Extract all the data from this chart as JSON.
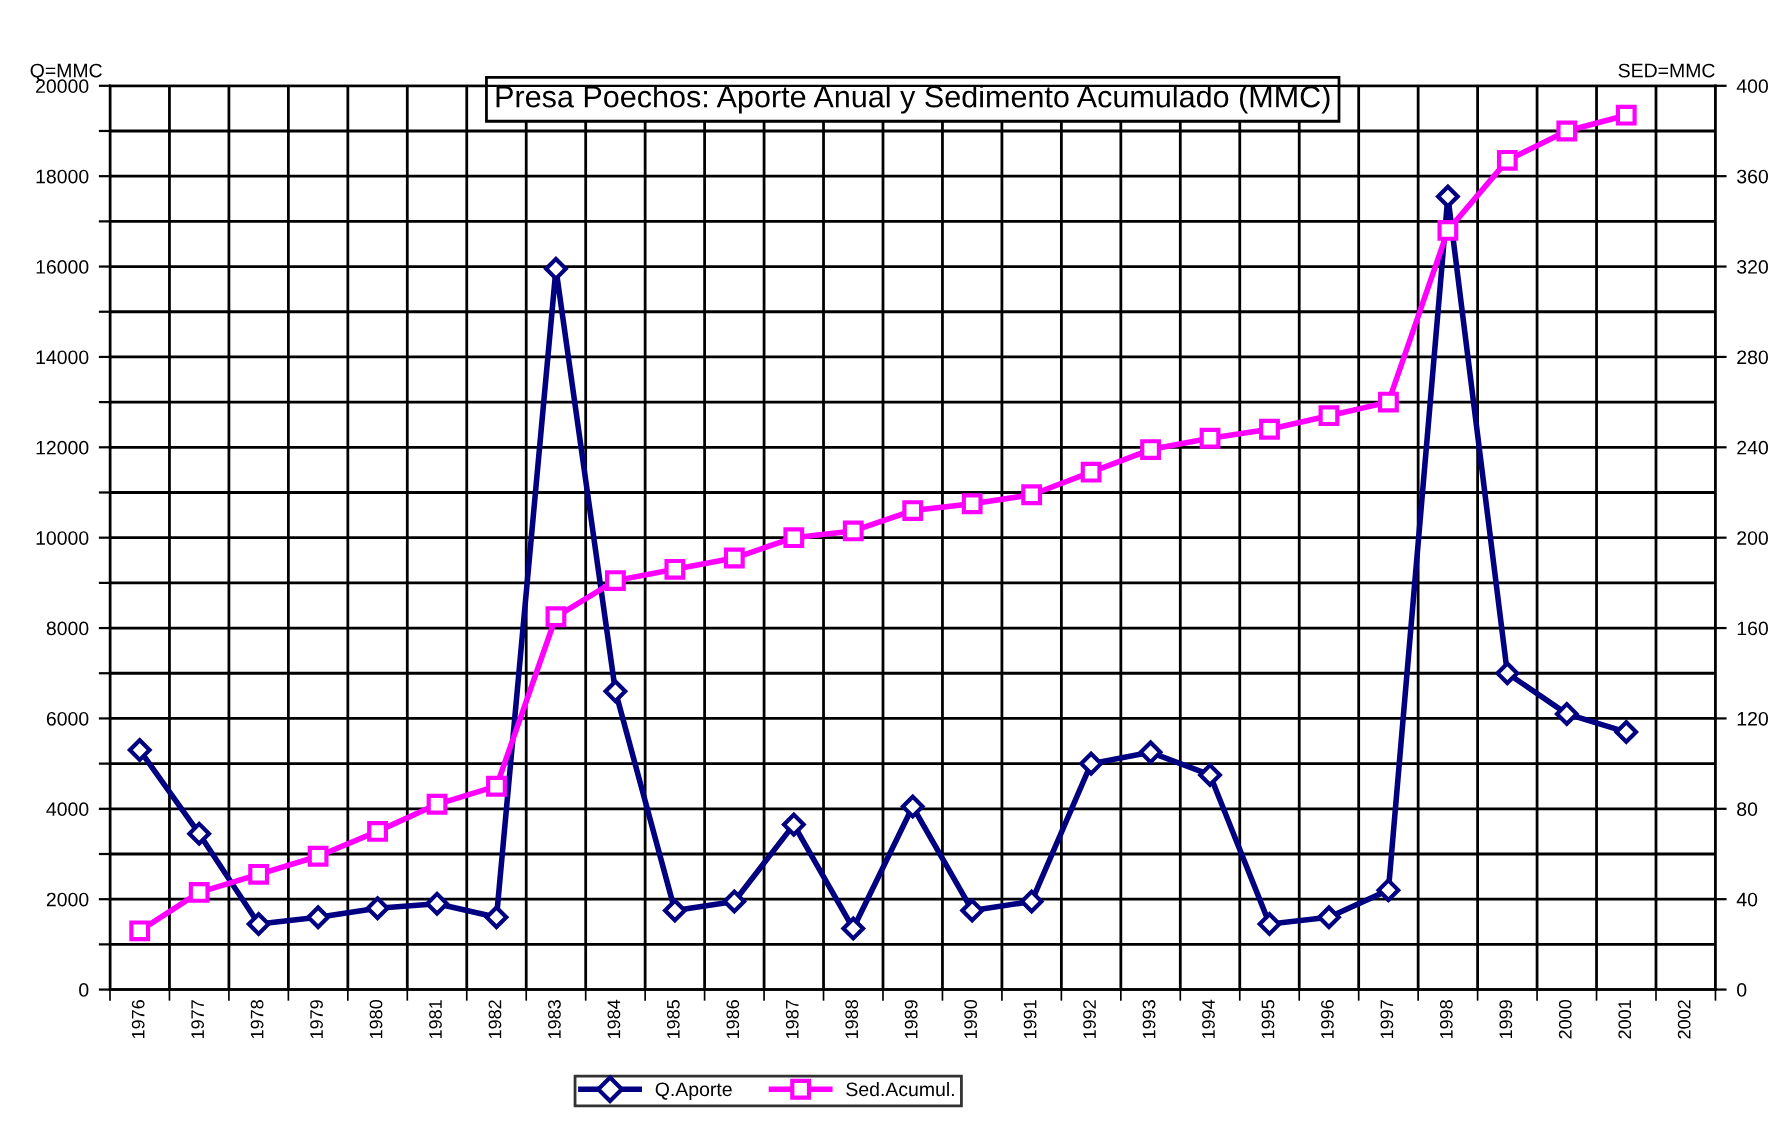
{
  "chart_data": {
    "type": "line",
    "title": "Presa Poechos: Aporte Anual y Sedimento Acumulado (MMC)",
    "ylabel": "Q=MMC",
    "y2label": "SED=MMC",
    "categories": [
      "1976",
      "1977",
      "1978",
      "1979",
      "1980",
      "1981",
      "1982",
      "1983",
      "1984",
      "1985",
      "1986",
      "1987",
      "1988",
      "1989",
      "1990",
      "1991",
      "1992",
      "1993",
      "1994",
      "1995",
      "1996",
      "1997",
      "1998",
      "1999",
      "2000",
      "2001",
      "2002"
    ],
    "series": [
      {
        "name": "Q.Aporte",
        "color": "#000080",
        "marker": "diamond",
        "values": [
          5300,
          3450,
          1450,
          1600,
          1800,
          1900,
          1600,
          15950,
          6600,
          1750,
          1950,
          3650,
          1350,
          4050,
          1750,
          1950,
          5000,
          5250,
          4750,
          1450,
          1600,
          2200,
          17550,
          7000,
          6100,
          5700,
          null
        ]
      },
      {
        "name": "Sed.Acumul.",
        "color": "#ff00ff",
        "marker": "square",
        "axis": "y2",
        "values": [
          26,
          43,
          51,
          59,
          70,
          82,
          90,
          165,
          181,
          186,
          191,
          200,
          203,
          212,
          215,
          219,
          229,
          239,
          244,
          248,
          254,
          260,
          336,
          367,
          380,
          387,
          null
        ]
      }
    ],
    "ylim": [
      0,
      20000
    ],
    "yticks": [
      0,
      {
        "value": 1000,
        "label": null
      },
      2000,
      {
        "value": 3000,
        "label": null
      },
      4000,
      {
        "value": 5000,
        "label": null
      },
      6000,
      {
        "value": 7000,
        "label": null
      },
      8000,
      {
        "value": 9000,
        "label": null
      },
      10000,
      {
        "value": 11000,
        "label": null
      },
      12000,
      {
        "value": 13000,
        "label": null
      },
      14000,
      {
        "value": 15000,
        "label": null
      },
      16000,
      {
        "value": 17000,
        "label": null
      },
      18000,
      {
        "value": 19000,
        "label": null
      },
      20000
    ],
    "y2lim": [
      0,
      400
    ],
    "y2ticks": [
      0,
      40,
      80,
      120,
      160,
      200,
      240,
      280,
      320,
      360,
      400
    ],
    "grid": true,
    "legend": "bottom",
    "line_style": "solid"
  }
}
